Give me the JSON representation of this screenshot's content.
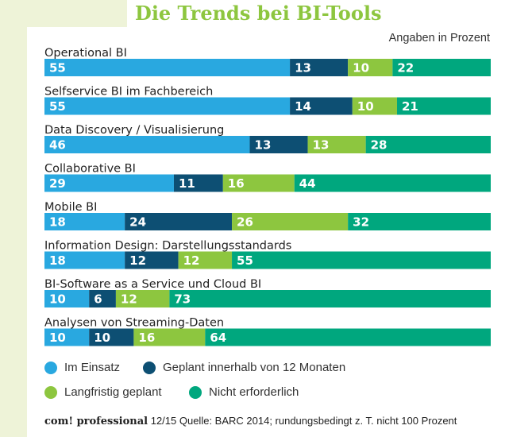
{
  "chart_data": {
    "type": "bar",
    "stacked": true,
    "orientation": "horizontal",
    "title": "Die Trends bei BI-Tools",
    "unit_note": "Angaben in Prozent",
    "categories": [
      "Operational BI",
      "Selfservice BI im Fachbereich",
      "Data Discovery / Visualisierung",
      "Collaborative BI",
      "Mobile BI",
      "Information Design: Darstellungsstandards",
      "BI-Software as a Service und Cloud BI",
      "Analysen von Streaming-Daten"
    ],
    "series": [
      {
        "name": "Im Einsatz",
        "color": "#29a8e0",
        "values": [
          55,
          55,
          46,
          29,
          18,
          18,
          10,
          10
        ]
      },
      {
        "name": "Geplant innerhalb von 12 Monaten",
        "color": "#0d4f73",
        "values": [
          13,
          14,
          13,
          11,
          24,
          12,
          6,
          10
        ]
      },
      {
        "name": "Langfristig geplant",
        "color": "#8dc63f",
        "values": [
          10,
          10,
          13,
          16,
          26,
          12,
          12,
          16
        ]
      },
      {
        "name": "Nicht erforderlich",
        "color": "#00a77e",
        "values": [
          22,
          21,
          28,
          44,
          32,
          55,
          73,
          64
        ]
      }
    ],
    "legend_position": "bottom",
    "grid": false
  },
  "footer": {
    "brand": "com! professional",
    "text": " 12/15  Quelle: BARC 2014; rundungsbedingt z. T. nicht 100 Prozent"
  }
}
